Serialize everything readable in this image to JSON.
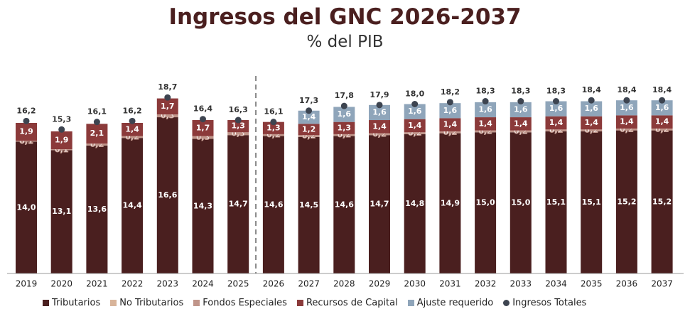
{
  "chart_data": {
    "type": "bar",
    "stacked": true,
    "title": "Ingresos del GNC 2026-2037",
    "subtitle": "% del PIB",
    "categories": [
      "2019",
      "2020",
      "2021",
      "2022",
      "2023",
      "2024",
      "2025",
      "2026",
      "2027",
      "2028",
      "2029",
      "2030",
      "2031",
      "2032",
      "2033",
      "2034",
      "2035",
      "2036",
      "2037"
    ],
    "series": [
      {
        "name": "Tributarios",
        "color": "#4a1f1f",
        "values": [
          14.0,
          13.1,
          13.6,
          14.4,
          16.6,
          14.3,
          14.7,
          14.6,
          14.5,
          14.6,
          14.7,
          14.8,
          14.9,
          15.0,
          15.0,
          15.1,
          15.1,
          15.2,
          15.2
        ],
        "labels": [
          "14,0",
          "13,1",
          "13,6",
          "14,4",
          "16,6",
          "14,3",
          "14,7",
          "14,6",
          "14,5",
          "14,6",
          "14,7",
          "14,8",
          "14,9",
          "15,0",
          "15,0",
          "15,1",
          "15,1",
          "15,2",
          "15,2"
        ]
      },
      {
        "name": "No Tributarios",
        "color": "#d8b49a",
        "values": [
          0,
          0,
          0,
          0,
          0,
          0,
          0,
          0,
          0,
          0,
          0,
          0,
          0,
          0,
          0,
          0,
          0,
          0,
          0
        ],
        "labels": [
          "",
          "",
          "",
          "",
          "",
          "",
          "",
          "",
          "",
          "",
          "",
          "",
          "",
          "",
          "",
          "",
          "",
          "",
          ""
        ]
      },
      {
        "name": "Fondos Especiales",
        "color": "#c0958a",
        "values": [
          0.1,
          0.1,
          0.2,
          0.2,
          0.3,
          0.3,
          0.3,
          0.2,
          0.2,
          0.2,
          0.2,
          0.2,
          0.2,
          0.2,
          0.2,
          0.2,
          0.2,
          0.2,
          0.2
        ],
        "labels": [
          "0,1",
          "0,1",
          "0,2",
          "0,2",
          "0,3",
          "0,3",
          "0,3",
          "0,2",
          "0,2",
          "0,2",
          "0,2",
          "0,2",
          "0,2",
          "0,2",
          "0,2",
          "0,2",
          "0,2",
          "0,2",
          "0,2"
        ]
      },
      {
        "name": "Recursos de Capital",
        "color": "#8b3a3a",
        "values": [
          1.9,
          1.9,
          2.1,
          1.4,
          1.7,
          1.7,
          1.3,
          1.3,
          1.2,
          1.3,
          1.4,
          1.4,
          1.4,
          1.4,
          1.4,
          1.4,
          1.4,
          1.4,
          1.4
        ],
        "labels": [
          "1,9",
          "1,9",
          "2,1",
          "1,4",
          "1,7",
          "1,7",
          "1,3",
          "1,3",
          "1,2",
          "1,3",
          "1,4",
          "1,4",
          "1,4",
          "1,4",
          "1,4",
          "1,4",
          "1,4",
          "1,4",
          "1,4"
        ]
      },
      {
        "name": "Ajuste requerido",
        "color": "#8fa5ba",
        "values": [
          0,
          0,
          0,
          0,
          0,
          0,
          0,
          0,
          1.4,
          1.6,
          1.6,
          1.6,
          1.6,
          1.6,
          1.6,
          1.6,
          1.6,
          1.6,
          1.6
        ],
        "labels": [
          "",
          "",
          "",
          "",
          "",
          "",
          "",
          "",
          "1,4",
          "1,6",
          "1,6",
          "1,6",
          "1,6",
          "1,6",
          "1,6",
          "1,6",
          "1,6",
          "1,6",
          "1,6"
        ]
      }
    ],
    "totals": {
      "name": "Ingresos Totales",
      "color": "#3d4450",
      "values": [
        16.2,
        15.3,
        16.1,
        16.2,
        18.7,
        16.4,
        16.3,
        16.1,
        17.3,
        17.8,
        17.9,
        18.0,
        18.2,
        18.3,
        18.3,
        18.3,
        18.4,
        18.4,
        18.4
      ],
      "labels": [
        "16,2",
        "15,3",
        "16,1",
        "16,2",
        "18,7",
        "16,4",
        "16,3",
        "16,1",
        "17,3",
        "17,8",
        "17,9",
        "18,0",
        "18,2",
        "18,3",
        "18,3",
        "18,3",
        "18,4",
        "18,4",
        "18,4"
      ]
    },
    "divider_after": "2025",
    "ylim": [
      0,
      20
    ],
    "grid": false,
    "legend_position": "bottom"
  }
}
